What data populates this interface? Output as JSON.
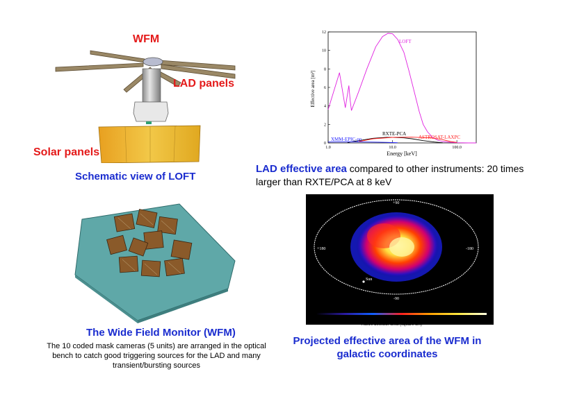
{
  "colors": {
    "label_red": "#e41a1a",
    "title_blue": "#1a2ccf",
    "loft_curve": "#e020e0",
    "rxte_curve": "#000000",
    "astrosat_curve": "#ff2020",
    "xmm_curve": "#2020ff"
  },
  "top_left": {
    "wfm_label": "WFM",
    "lad_label": "LAD panels",
    "solar_label": "Solar panels",
    "caption": "Schematic view of LOFT"
  },
  "top_right": {
    "caption_bold": "LAD effective area",
    "caption_rest": " compared to other instruments: 20 times larger than RXTE/PCA at 8 keV"
  },
  "bottom_left": {
    "title": "The Wide Field Monitor (WFM)",
    "text": "The 10 coded mask cameras (5 units) are arranged in the optical bench to catch good triggering sources for the LAD and many transient/bursting sources"
  },
  "bottom_right": {
    "caption": "Projected effective area of the WFM in galactic coordinates",
    "sky_labels": {
      "top": "+90",
      "bottom": "-90",
      "left": "+180",
      "right": "-180",
      "sun": "Sun"
    },
    "colorbar_ticks": [
      "16",
      "32",
      "48",
      "63",
      "79",
      "95",
      "111",
      "127",
      "143"
    ],
    "colorbar_label": "Active detector area (square cm)"
  },
  "chart_data": {
    "type": "line",
    "xlabel": "Energy  [keV]",
    "ylabel": "Effective area [m²]",
    "xscale": "log",
    "xlim": [
      1.0,
      200.0
    ],
    "ylim": [
      0,
      12
    ],
    "x_tick_labels": [
      "1.0",
      "10.0",
      "100.0"
    ],
    "y_tick_labels": [
      "0",
      "2",
      "4",
      "6",
      "8",
      "10",
      "12"
    ],
    "series": [
      {
        "name": "LOFT",
        "color": "#e020e0",
        "x": [
          1.0,
          1.5,
          1.85,
          2.1,
          2.2,
          2.3,
          3.0,
          4.0,
          5.5,
          7.0,
          8.5,
          10.0,
          12.0,
          15.0,
          18.0,
          22.0,
          26.0,
          30.0,
          35.0,
          42.0,
          50.0,
          60.0,
          80.0,
          100.0,
          150.0,
          200.0
        ],
        "y": [
          3.6,
          7.6,
          3.8,
          6.2,
          4.6,
          3.5,
          5.6,
          8.0,
          10.4,
          11.5,
          11.85,
          11.8,
          11.2,
          9.8,
          7.8,
          5.4,
          3.4,
          2.0,
          1.2,
          0.6,
          0.3,
          0.15,
          0.06,
          0.02,
          0.0,
          0.0
        ]
      },
      {
        "name": "RXTE-PCA",
        "color": "#000000",
        "x": [
          2.0,
          3.0,
          5.0,
          8.0,
          10.0,
          15.0,
          20.0,
          30.0,
          45.0,
          60.0
        ],
        "y": [
          0.05,
          0.25,
          0.5,
          0.6,
          0.6,
          0.55,
          0.45,
          0.25,
          0.1,
          0.02
        ]
      },
      {
        "name": "ASTROSAT-LAXPC",
        "color": "#ff2020",
        "x": [
          3.0,
          5.0,
          10.0,
          20.0,
          40.0,
          60.0,
          80.0,
          100.0
        ],
        "y": [
          0.15,
          0.45,
          0.6,
          0.62,
          0.55,
          0.35,
          0.15,
          0.05
        ]
      },
      {
        "name": "XMM-EPIC-pn",
        "color": "#2020ff",
        "x": [
          1.0,
          2.0,
          4.0,
          6.0,
          8.0,
          10.0,
          12.0
        ],
        "y": [
          0.1,
          0.12,
          0.1,
          0.08,
          0.06,
          0.04,
          0.02
        ]
      }
    ]
  }
}
